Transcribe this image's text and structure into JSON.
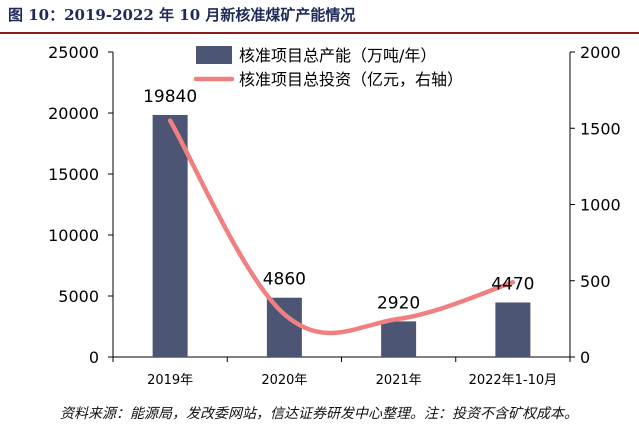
{
  "figure_title": "图 10：2019-2022 年 10 月新核准煤矿产能情况",
  "source_note": "资料来源：能源局，发改委网站，信达证券研发中心整理。注：投资不含矿权成本。",
  "colors": {
    "bar": "#4c5573",
    "line": "#f08080",
    "title": "#1f2a5a",
    "rule": "#8b1a1a"
  },
  "chart_data": {
    "type": "bar",
    "title": "2019-2022 年 10 月新核准煤矿产能情况",
    "categories": [
      "2019年",
      "2020年",
      "2021年",
      "2022年1-10月"
    ],
    "series": [
      {
        "name": "核准项目总产能（万吨/年）",
        "type": "bar",
        "axis": "left",
        "values": [
          19840,
          4860,
          2920,
          4470
        ],
        "labels": [
          "19840",
          "4860",
          "2920",
          "4470"
        ]
      },
      {
        "name": "核准项目总投资（亿元，右轴）",
        "type": "line",
        "axis": "right",
        "values": [
          1550,
          280,
          250,
          490
        ]
      }
    ],
    "y_left": {
      "min": 0,
      "max": 25000,
      "ticks": [
        "0",
        "5000",
        "10000",
        "15000",
        "20000",
        "25000"
      ],
      "tick_values": [
        0,
        5000,
        10000,
        15000,
        20000,
        25000
      ]
    },
    "y_right": {
      "min": 0,
      "max": 2000,
      "ticks": [
        "0",
        "500",
        "1000",
        "1500",
        "2000"
      ],
      "tick_values": [
        0,
        500,
        1000,
        1500,
        2000
      ]
    },
    "legend_position": "top-center",
    "grid": false
  }
}
